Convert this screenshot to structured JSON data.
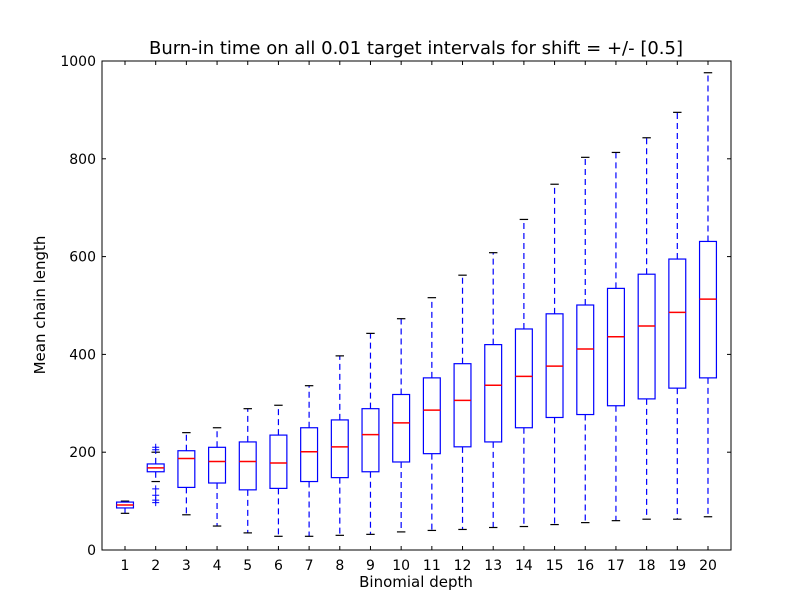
{
  "chart_data": {
    "type": "box",
    "title": "Burn-in time on all 0.01 target intervals for shift = +/- [0.5]",
    "xlabel": "Binomial depth",
    "ylabel": "Mean chain length",
    "ylim": [
      0,
      1000
    ],
    "yticks": [
      0,
      200,
      400,
      600,
      800,
      1000
    ],
    "categories": [
      "1",
      "2",
      "3",
      "4",
      "5",
      "6",
      "7",
      "8",
      "9",
      "10",
      "11",
      "12",
      "13",
      "14",
      "15",
      "16",
      "17",
      "18",
      "19",
      "20"
    ],
    "grid": false,
    "colors": {
      "box": "#0000ff",
      "median": "#ff0000",
      "outlier": "#0000ff",
      "axes": "#000000"
    },
    "boxes": [
      {
        "x": 1,
        "whisker_low": 75,
        "q1": 86,
        "median": 92,
        "q3": 98,
        "whisker_high": 100,
        "outliers": []
      },
      {
        "x": 2,
        "whisker_low": 140,
        "q1": 160,
        "median": 168,
        "q3": 176,
        "whisker_high": 200,
        "outliers": [
          97,
          102,
          112,
          125,
          205,
          210
        ]
      },
      {
        "x": 3,
        "whisker_low": 72,
        "q1": 128,
        "median": 187,
        "q3": 203,
        "whisker_high": 240,
        "outliers": []
      },
      {
        "x": 4,
        "whisker_low": 49,
        "q1": 137,
        "median": 181,
        "q3": 210,
        "whisker_high": 250,
        "outliers": []
      },
      {
        "x": 5,
        "whisker_low": 35,
        "q1": 123,
        "median": 181,
        "q3": 221,
        "whisker_high": 289,
        "outliers": []
      },
      {
        "x": 6,
        "whisker_low": 28,
        "q1": 126,
        "median": 178,
        "q3": 235,
        "whisker_high": 296,
        "outliers": []
      },
      {
        "x": 7,
        "whisker_low": 28,
        "q1": 140,
        "median": 201,
        "q3": 250,
        "whisker_high": 336,
        "outliers": []
      },
      {
        "x": 8,
        "whisker_low": 30,
        "q1": 148,
        "median": 211,
        "q3": 266,
        "whisker_high": 397,
        "outliers": []
      },
      {
        "x": 9,
        "whisker_low": 32,
        "q1": 160,
        "median": 236,
        "q3": 289,
        "whisker_high": 443,
        "outliers": []
      },
      {
        "x": 10,
        "whisker_low": 37,
        "q1": 180,
        "median": 260,
        "q3": 318,
        "whisker_high": 473,
        "outliers": []
      },
      {
        "x": 11,
        "whisker_low": 40,
        "q1": 197,
        "median": 286,
        "q3": 352,
        "whisker_high": 516,
        "outliers": []
      },
      {
        "x": 12,
        "whisker_low": 42,
        "q1": 211,
        "median": 306,
        "q3": 381,
        "whisker_high": 562,
        "outliers": []
      },
      {
        "x": 13,
        "whisker_low": 46,
        "q1": 221,
        "median": 337,
        "q3": 420,
        "whisker_high": 608,
        "outliers": []
      },
      {
        "x": 14,
        "whisker_low": 48,
        "q1": 250,
        "median": 355,
        "q3": 452,
        "whisker_high": 676,
        "outliers": []
      },
      {
        "x": 15,
        "whisker_low": 52,
        "q1": 271,
        "median": 376,
        "q3": 483,
        "whisker_high": 748,
        "outliers": []
      },
      {
        "x": 16,
        "whisker_low": 56,
        "q1": 277,
        "median": 411,
        "q3": 501,
        "whisker_high": 803,
        "outliers": []
      },
      {
        "x": 17,
        "whisker_low": 60,
        "q1": 295,
        "median": 436,
        "q3": 535,
        "whisker_high": 813,
        "outliers": []
      },
      {
        "x": 18,
        "whisker_low": 63,
        "q1": 309,
        "median": 458,
        "q3": 564,
        "whisker_high": 843,
        "outliers": []
      },
      {
        "x": 19,
        "whisker_low": 63,
        "q1": 331,
        "median": 486,
        "q3": 595,
        "whisker_high": 895,
        "outliers": []
      },
      {
        "x": 20,
        "whisker_low": 68,
        "q1": 352,
        "median": 513,
        "q3": 631,
        "whisker_high": 976,
        "outliers": []
      }
    ]
  }
}
